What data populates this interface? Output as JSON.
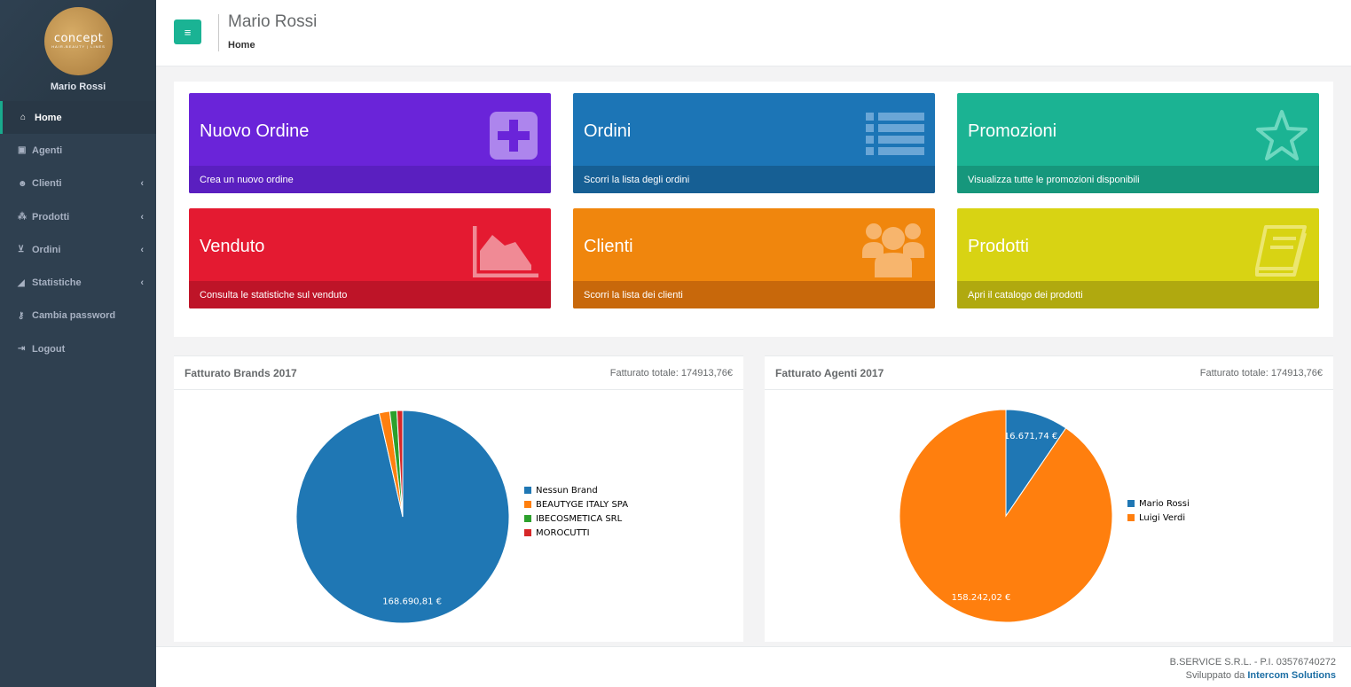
{
  "colors": {
    "accent": "#1ab394",
    "sidebar": "#2f4050"
  },
  "sidebar": {
    "logo_text": "concept",
    "logo_sub": "HAIR-BEAUTY | LINES",
    "user_name": "Mario Rossi",
    "items": [
      {
        "label": "Home",
        "icon": "home-icon"
      },
      {
        "label": "Agenti",
        "icon": "briefcase-icon"
      },
      {
        "label": "Clienti",
        "icon": "users-icon"
      },
      {
        "label": "Prodotti",
        "icon": "cubes-icon"
      },
      {
        "label": "Ordini",
        "icon": "cart-icon"
      },
      {
        "label": "Statistiche",
        "icon": "area-chart-icon"
      },
      {
        "label": "Cambia password",
        "icon": "key-icon"
      },
      {
        "label": "Logout",
        "icon": "sign-out-icon"
      }
    ]
  },
  "header": {
    "title": "Mario Rossi",
    "breadcrumb": "Home"
  },
  "tiles": [
    {
      "title": "Nuovo Ordine",
      "footer": "Crea un nuovo ordine",
      "icon": "plus-square-icon",
      "color": "#6a24d9",
      "foot_color": "#5a1fc0"
    },
    {
      "title": "Ordini",
      "footer": "Scorri la lista degli ordini",
      "icon": "list-icon",
      "color": "#1c75b6",
      "foot_color": "#165f94"
    },
    {
      "title": "Promozioni",
      "footer": "Visualizza tutte le promozioni disponibili",
      "icon": "star-icon",
      "color": "#1bb393",
      "foot_color": "#16977c"
    },
    {
      "title": "Venduto",
      "footer": "Consulta le statistiche sul venduto",
      "icon": "area-chart-icon",
      "color": "#e41a31",
      "foot_color": "#be1428"
    },
    {
      "title": "Clienti",
      "footer": "Scorri la lista dei clienti",
      "icon": "group-icon",
      "color": "#f0860d",
      "foot_color": "#c8680b"
    },
    {
      "title": "Prodotti",
      "footer": "Apri il catalogo dei prodotti",
      "icon": "book-icon",
      "color": "#d8d313",
      "foot_color": "#b0a90f"
    }
  ],
  "chart_data": [
    {
      "type": "pie",
      "title": "Fatturato Brands 2017",
      "total_label": "Fatturato totale: 174913,76€",
      "categories": [
        "Nessun Brand",
        "BEAUTYGE ITALY SPA",
        "IBECOSMETICA SRL",
        "MOROCUTTI"
      ],
      "values": [
        168690.81,
        2800,
        1900,
        1522.95
      ],
      "colors": [
        "#1f77b4",
        "#ff7f0e",
        "#2ca02c",
        "#d62728"
      ],
      "data_labels": [
        "168.690,81 €",
        "",
        "",
        ""
      ],
      "legend": "right"
    },
    {
      "type": "pie",
      "title": "Fatturato Agenti 2017",
      "total_label": "Fatturato totale: 174913,76€",
      "categories": [
        "Mario Rossi",
        "Luigi Verdi"
      ],
      "values": [
        16671.74,
        158242.02
      ],
      "colors": [
        "#1f77b4",
        "#ff7f0e"
      ],
      "data_labels": [
        "16.671,74 €",
        "158.242,02 €"
      ],
      "legend": "right"
    }
  ],
  "footer": {
    "company": "B.SERVICE S.R.L. - P.I. 03576740272",
    "dev_prefix": "Sviluppato da",
    "dev_name": "Intercom Solutions"
  }
}
